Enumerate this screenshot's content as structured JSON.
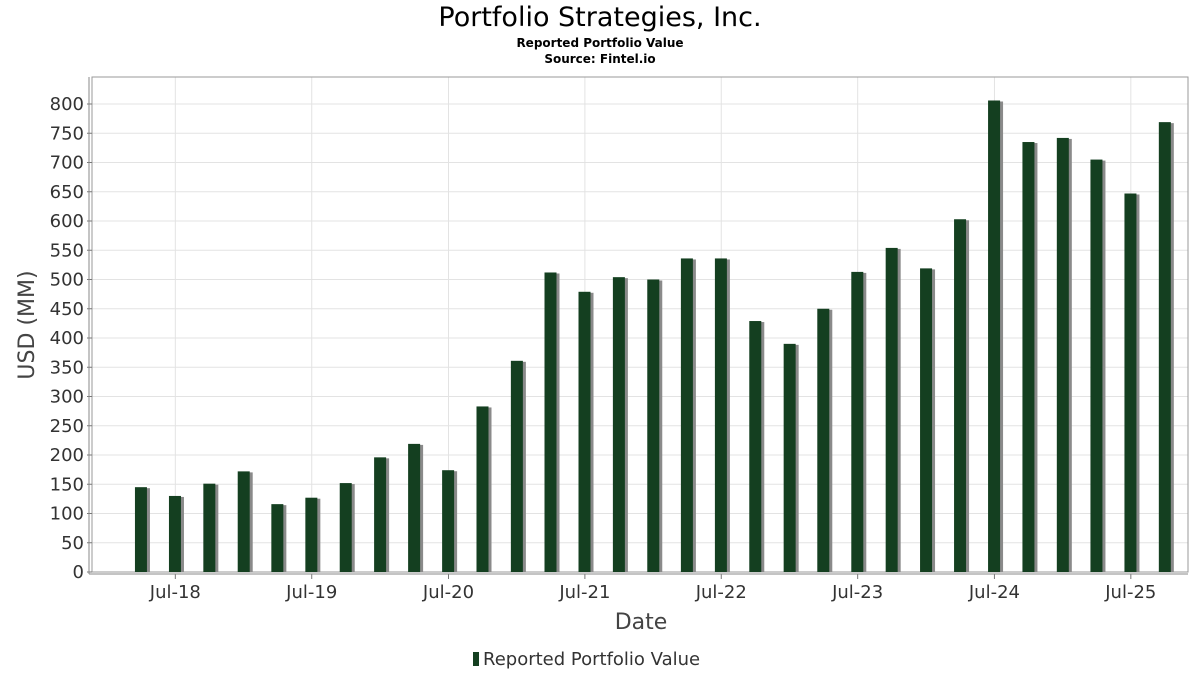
{
  "header": {
    "title": "Portfolio Strategies, Inc.",
    "subtitle": "Reported Portfolio Value",
    "source": "Source: Fintel.io"
  },
  "chart_data": {
    "type": "bar",
    "title": "Portfolio Strategies, Inc.",
    "subtitle": "Reported Portfolio Value",
    "xlabel": "Date",
    "ylabel": "USD (MM)",
    "ylim": [
      0,
      820
    ],
    "yticks": [
      0,
      50,
      100,
      150,
      200,
      250,
      300,
      350,
      400,
      450,
      500,
      550,
      600,
      650,
      700,
      750,
      800
    ],
    "xlim": [
      "2017-11-20",
      "2025-12-01"
    ],
    "xticks": [
      {
        "date": "2018-07-01",
        "label": "Jul-18"
      },
      {
        "date": "2019-07-01",
        "label": "Jul-19"
      },
      {
        "date": "2020-07-01",
        "label": "Jul-20"
      },
      {
        "date": "2021-07-01",
        "label": "Jul-21"
      },
      {
        "date": "2022-07-01",
        "label": "Jul-22"
      },
      {
        "date": "2023-07-01",
        "label": "Jul-23"
      },
      {
        "date": "2024-07-01",
        "label": "Jul-24"
      },
      {
        "date": "2025-07-01",
        "label": "Jul-25"
      }
    ],
    "grid": true,
    "legend": "bottom-center",
    "colors": {
      "bar": "#143f20",
      "shadow": "#8a8a8a"
    },
    "series": [
      {
        "name": "Reported Portfolio Value",
        "points": [
          {
            "date": "2018-03-31",
            "value": 145
          },
          {
            "date": "2018-06-30",
            "value": 130
          },
          {
            "date": "2018-09-30",
            "value": 151
          },
          {
            "date": "2018-12-31",
            "value": 172
          },
          {
            "date": "2019-03-31",
            "value": 116
          },
          {
            "date": "2019-06-30",
            "value": 127
          },
          {
            "date": "2019-09-30",
            "value": 152
          },
          {
            "date": "2019-12-31",
            "value": 196
          },
          {
            "date": "2020-03-31",
            "value": 219
          },
          {
            "date": "2020-06-30",
            "value": 174
          },
          {
            "date": "2020-09-30",
            "value": 283
          },
          {
            "date": "2020-12-31",
            "value": 361
          },
          {
            "date": "2021-03-31",
            "value": 512
          },
          {
            "date": "2021-06-30",
            "value": 479
          },
          {
            "date": "2021-09-30",
            "value": 504
          },
          {
            "date": "2021-12-31",
            "value": 500
          },
          {
            "date": "2022-03-31",
            "value": 536
          },
          {
            "date": "2022-06-30",
            "value": 536
          },
          {
            "date": "2022-09-30",
            "value": 429
          },
          {
            "date": "2022-12-31",
            "value": 390
          },
          {
            "date": "2023-03-31",
            "value": 450
          },
          {
            "date": "2023-06-30",
            "value": 513
          },
          {
            "date": "2023-09-30",
            "value": 554
          },
          {
            "date": "2023-12-31",
            "value": 519
          },
          {
            "date": "2024-03-31",
            "value": 603
          },
          {
            "date": "2024-06-30",
            "value": 806
          },
          {
            "date": "2024-09-30",
            "value": 735
          },
          {
            "date": "2024-12-31",
            "value": 742
          },
          {
            "date": "2025-03-31",
            "value": 705
          },
          {
            "date": "2025-06-30",
            "value": 647
          },
          {
            "date": "2025-09-30",
            "value": 769
          }
        ]
      }
    ]
  }
}
